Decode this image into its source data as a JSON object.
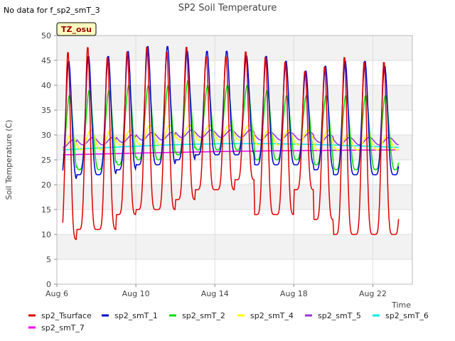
{
  "header": {
    "nodata_text": "No data for f_sp2_smT_3",
    "tz_badge": "TZ_osu"
  },
  "colors": {
    "badge_fill": "#ffffc0",
    "band": "#f2f2f2",
    "grid": "#dddddd"
  },
  "chart_data": {
    "type": "line",
    "title": "SP2 Soil Temperature",
    "xlabel": "Time",
    "ylabel": "Soil Temperature (C)",
    "xlim": [
      "2023-08-06",
      "2023-08-24T00:00"
    ],
    "ylim": [
      0,
      50
    ],
    "y_ticks": [
      0,
      5,
      10,
      15,
      20,
      25,
      30,
      35,
      40,
      45,
      50
    ],
    "x_ticks": [
      {
        "date": "2023-08-06",
        "label": "Aug 6"
      },
      {
        "date": "2023-08-10",
        "label": "Aug 10"
      },
      {
        "date": "2023-08-14",
        "label": "Aug 14"
      },
      {
        "date": "2023-08-18",
        "label": "Aug 18"
      },
      {
        "date": "2023-08-22",
        "label": "Aug 22"
      }
    ],
    "grid": true,
    "legend_position": "bottom",
    "series": [
      {
        "name": "sp2_Tsurface",
        "color": "#dd0000",
        "daily_min": [
          9,
          11,
          11,
          14,
          15,
          15,
          17,
          19,
          19,
          21,
          14,
          14,
          19,
          13,
          10,
          10,
          10
        ],
        "daily_max": [
          47,
          48,
          46,
          47,
          48,
          47,
          48,
          46,
          46,
          47,
          46,
          45,
          43,
          44,
          46,
          45,
          45
        ]
      },
      {
        "name": "sp2_smT_1",
        "color": "#0000cc",
        "daily_min": [
          21,
          22,
          22,
          23,
          24,
          24,
          25,
          26,
          26,
          26,
          24,
          24,
          24,
          23,
          22,
          22,
          22
        ],
        "daily_max": [
          45,
          46,
          46,
          47,
          48,
          48,
          47,
          47,
          47,
          46,
          46,
          45,
          43,
          44,
          45,
          45,
          44
        ]
      },
      {
        "name": "sp2_smT_2",
        "color": "#00dd00",
        "daily_min": [
          22,
          23,
          23,
          24,
          25,
          25,
          26,
          27,
          27,
          27,
          25,
          25,
          25,
          24,
          23,
          23,
          23
        ],
        "daily_max": [
          38,
          39,
          39,
          40,
          40,
          40,
          41,
          40,
          40,
          40,
          39,
          38,
          38,
          38,
          38,
          38,
          38
        ]
      },
      {
        "name": "sp2_smT_4",
        "color": "#ffff00",
        "daily_min": [
          27,
          27,
          27,
          28,
          28,
          28,
          29,
          29,
          29,
          29,
          28,
          28,
          28,
          27,
          27,
          27,
          27
        ],
        "daily_max": [
          30,
          31,
          31,
          31,
          32,
          32,
          32,
          32,
          32,
          32,
          31,
          31,
          31,
          31,
          30,
          30,
          30
        ]
      },
      {
        "name": "sp2_smT_5",
        "color": "#9933dd",
        "daily_min": [
          27.5,
          28,
          28,
          28.5,
          29,
          29,
          29.5,
          29.5,
          29.5,
          29.5,
          29,
          29,
          29,
          28.5,
          28,
          28,
          28
        ],
        "daily_max": [
          29,
          29.5,
          29.5,
          30,
          30.5,
          30.5,
          31,
          31,
          31,
          31,
          30.5,
          30.5,
          30.5,
          30,
          29.5,
          29.5,
          29.5
        ]
      },
      {
        "name": "sp2_smT_6",
        "color": "#00eeee",
        "start": 27,
        "end": 27.5,
        "peak": 28.5
      },
      {
        "name": "sp2_smT_7",
        "color": "#ee00ee",
        "start": 26,
        "end": 27.0,
        "peak": 27.2
      }
    ]
  }
}
